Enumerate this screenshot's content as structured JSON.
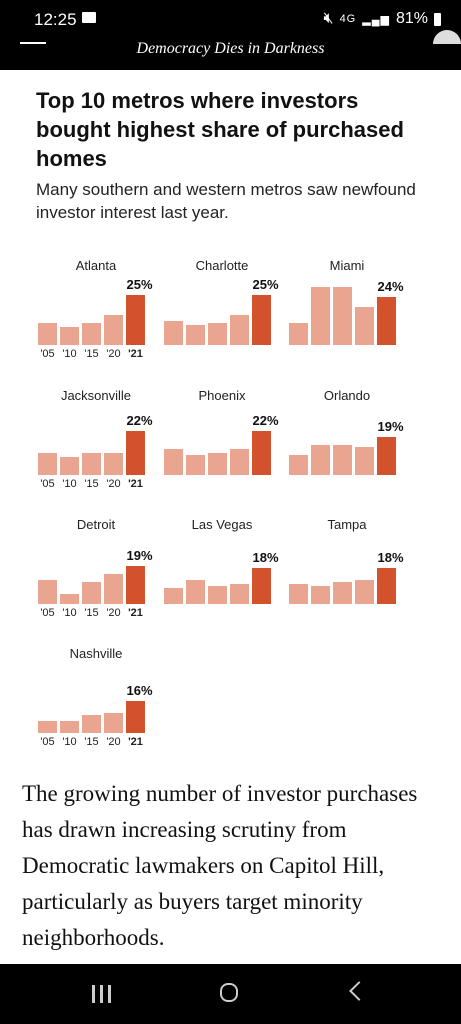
{
  "status": {
    "time": "12:25",
    "battery": "81%",
    "network": "4G"
  },
  "header": {
    "tagline": "Democracy Dies in Darkness"
  },
  "article": {
    "headline": "Top 10 metros where investors bought highest share of purchased homes",
    "subhead": "Many southern and western metros saw newfound investor interest last year.",
    "body": "The growing number of investor purchases has drawn increasing scrutiny from Democratic lawmakers on Capitol Hill, particularly as buyers target minority neighborhoods."
  },
  "colors": {
    "bar": "#e9a58f",
    "highlight": "#d2522b"
  },
  "chart_data": {
    "type": "bar",
    "categories": [
      "'05",
      "'10",
      "'15",
      "'20",
      "'21"
    ],
    "ylim": [
      0,
      30
    ],
    "panels": [
      {
        "city": "Atlanta",
        "label": "25%",
        "show_axis": true,
        "values": [
          11,
          9,
          11,
          15,
          25
        ]
      },
      {
        "city": "Charlotte",
        "label": "25%",
        "show_axis": false,
        "values": [
          12,
          10,
          11,
          15,
          25
        ]
      },
      {
        "city": "Miami",
        "label": "24%",
        "show_axis": false,
        "values": [
          11,
          29,
          29,
          19,
          24
        ]
      },
      {
        "city": "Jacksonville",
        "label": "22%",
        "show_axis": true,
        "values": [
          11,
          9,
          11,
          11,
          22
        ]
      },
      {
        "city": "Phoenix",
        "label": "22%",
        "show_axis": false,
        "values": [
          13,
          10,
          11,
          13,
          22
        ]
      },
      {
        "city": "Orlando",
        "label": "19%",
        "show_axis": false,
        "values": [
          10,
          15,
          15,
          14,
          19
        ]
      },
      {
        "city": "Detroit",
        "label": "19%",
        "show_axis": true,
        "values": [
          12,
          5,
          11,
          15,
          19
        ]
      },
      {
        "city": "Las Vegas",
        "label": "18%",
        "show_axis": false,
        "values": [
          8,
          12,
          9,
          10,
          18
        ]
      },
      {
        "city": "Tampa",
        "label": "18%",
        "show_axis": false,
        "values": [
          10,
          9,
          11,
          12,
          18
        ]
      },
      {
        "city": "Nashville",
        "label": "16%",
        "show_axis": true,
        "values": [
          6,
          6,
          9,
          10,
          16
        ]
      }
    ]
  }
}
